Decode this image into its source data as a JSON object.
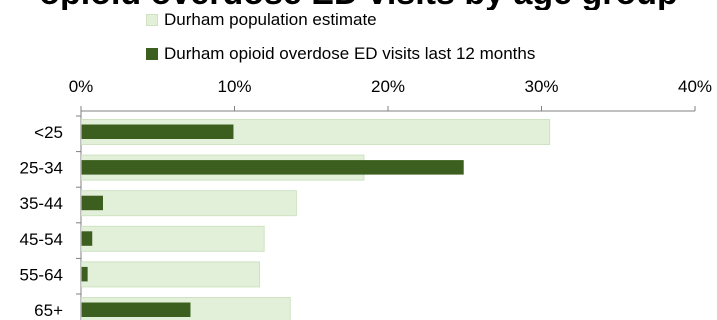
{
  "chart_data": {
    "type": "bar",
    "orientation": "horizontal",
    "title": "opioid overdose ED visits by age group",
    "xlabel": "",
    "ylabel": "",
    "xlim": [
      0,
      40
    ],
    "x_ticks": [
      0,
      10,
      20,
      30,
      40
    ],
    "tick_suffix": "%",
    "grid": false,
    "legend_position": "top",
    "categories": [
      "<25",
      "25-34",
      "35-44",
      "45-54",
      "55-64",
      "65+"
    ],
    "series": [
      {
        "name": "Durham population estimate",
        "color": "#e2f0da",
        "border": "#cfe3c2",
        "values": [
          30.5,
          18.4,
          14.0,
          11.9,
          11.6,
          13.6
        ]
      },
      {
        "name": "Durham opioid overdose ED visits last 12 months",
        "color": "#3c5f1f",
        "values": [
          9.9,
          24.9,
          1.4,
          0.7,
          0.4,
          7.1
        ]
      }
    ]
  }
}
